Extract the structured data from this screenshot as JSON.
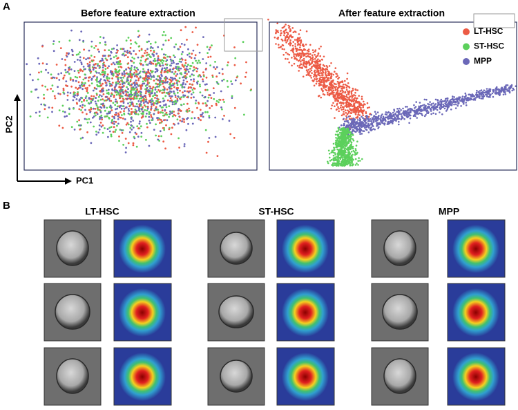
{
  "panel_a": {
    "label": "A",
    "left_title": "Before feature extraction",
    "right_title": "After feature extraction",
    "x_axis": "PC1",
    "y_axis": "PC2",
    "legend": [
      {
        "name": "LT-HSC",
        "color": "#ec5b45"
      },
      {
        "name": "ST-HSC",
        "color": "#5cd05c"
      },
      {
        "name": "MPP",
        "color": "#6b68b8"
      }
    ]
  },
  "panel_b": {
    "label": "B",
    "groups": [
      "LT-HSC",
      "ST-HSC",
      "MPP"
    ]
  }
}
